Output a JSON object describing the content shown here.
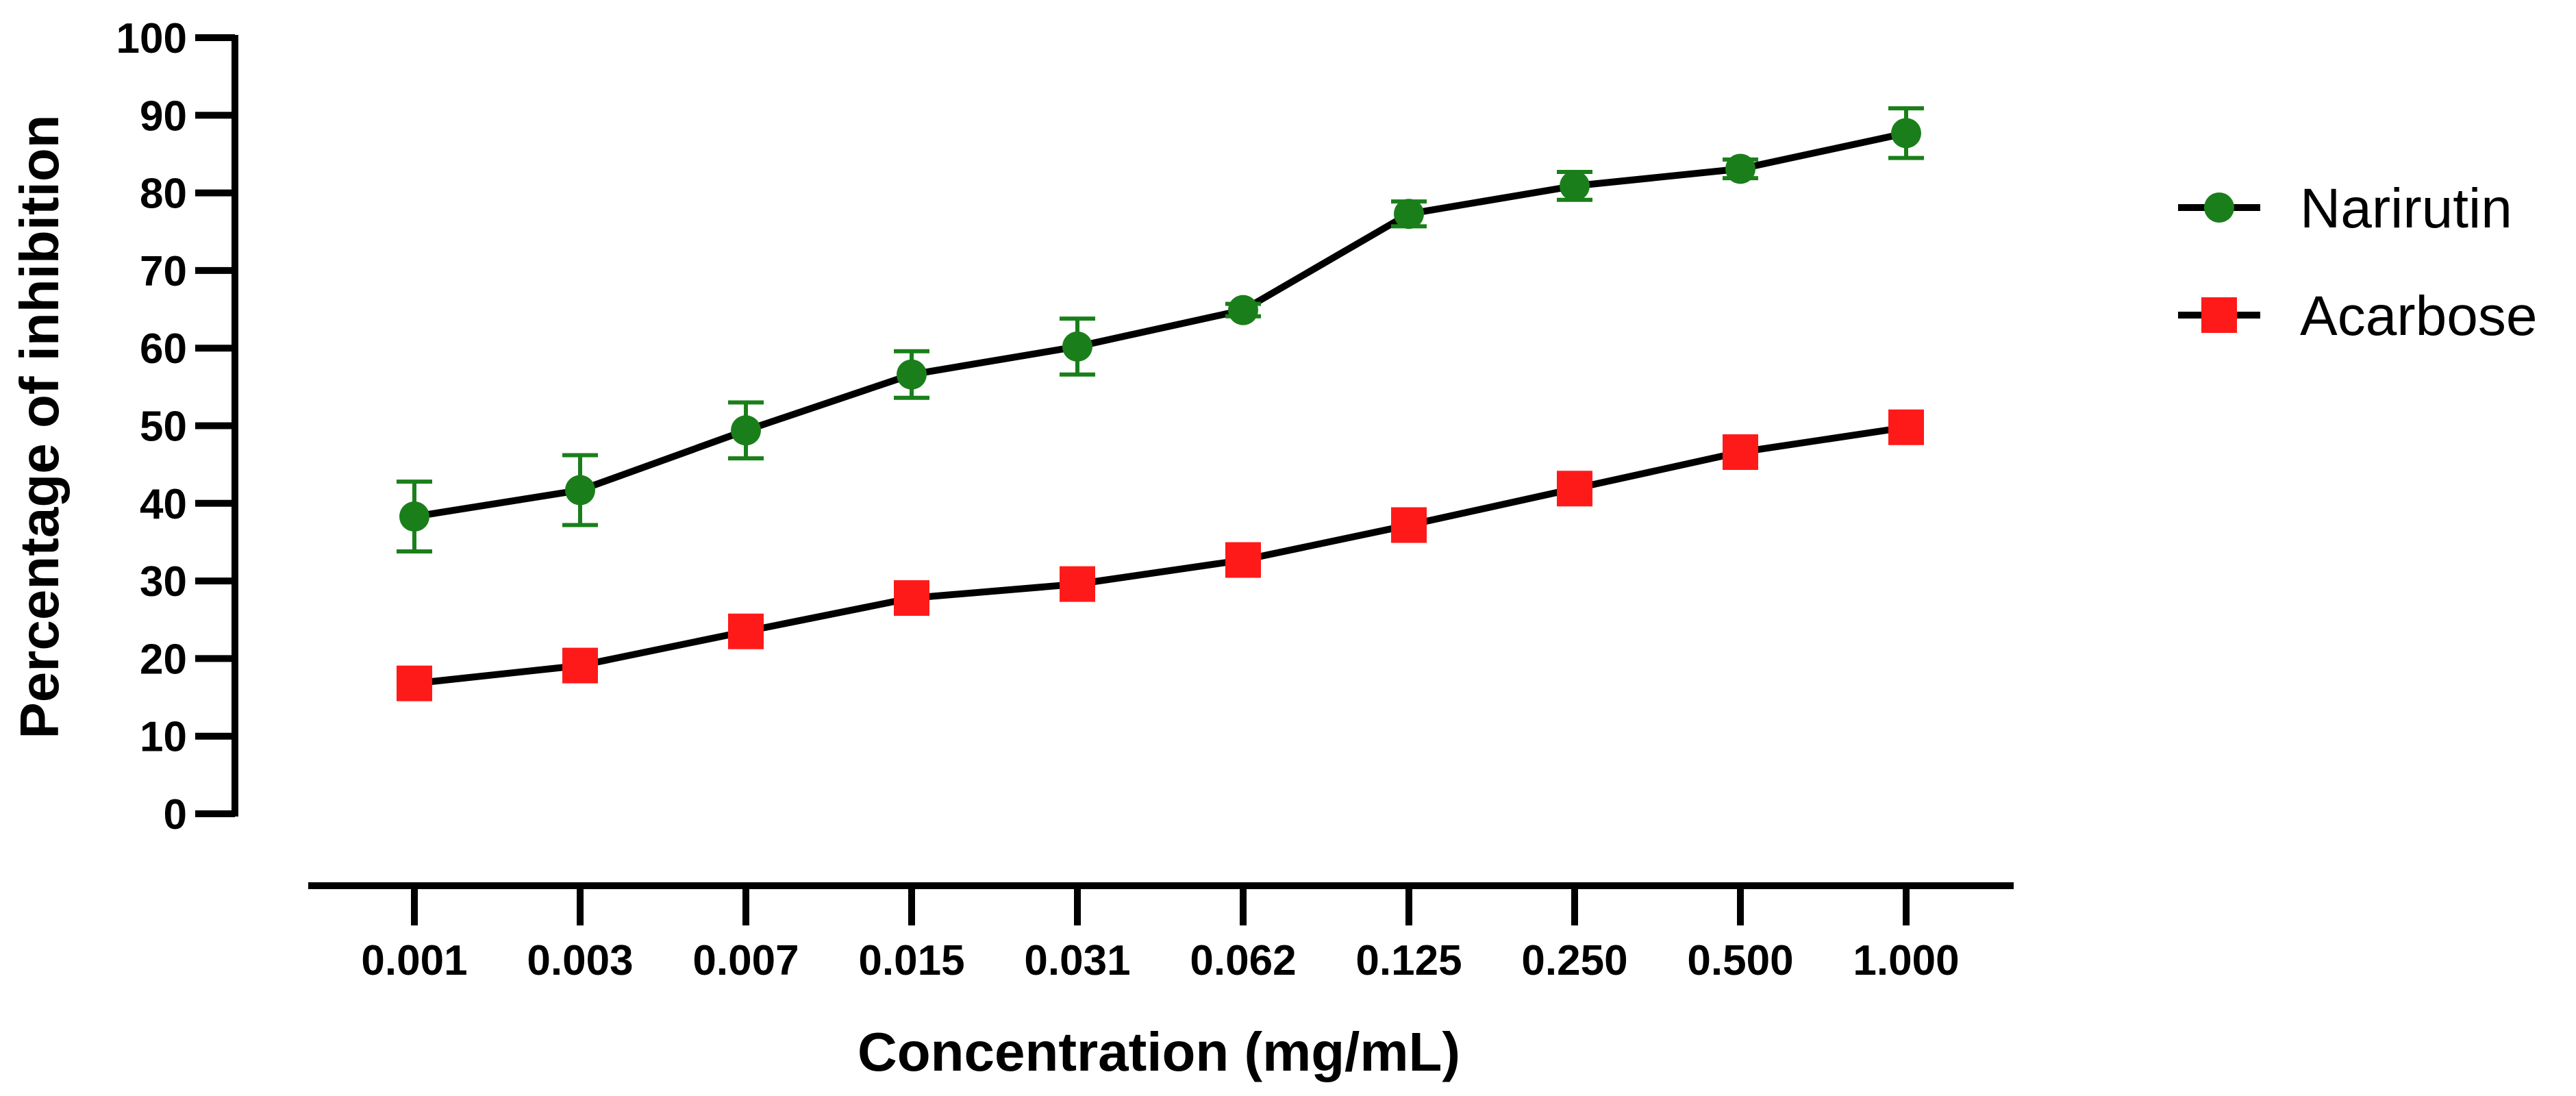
{
  "chart_data": {
    "type": "line",
    "title": "",
    "xlabel": "Concentration (mg/mL)",
    "ylabel": "Percentage of inhibition",
    "categories": [
      "0.001",
      "0.003",
      "0.007",
      "0.015",
      "0.031",
      "0.062",
      "0.125",
      "0.250",
      "0.500",
      "1.000"
    ],
    "yticks": [
      0,
      10,
      20,
      30,
      40,
      50,
      60,
      70,
      80,
      90,
      100
    ],
    "ylim": [
      0,
      100
    ],
    "grid": false,
    "legend_position": "right",
    "series": [
      {
        "name": "Narirutin",
        "marker": "circle",
        "color": "#1a7f1a",
        "values": [
          38.3,
          41.7,
          49.4,
          56.6,
          60.2,
          64.9,
          77.3,
          80.9,
          83.1,
          87.7
        ],
        "errors": [
          4.5,
          4.5,
          3.6,
          3.0,
          3.6,
          0.8,
          1.6,
          1.8,
          1.2,
          3.2
        ]
      },
      {
        "name": "Acarbose",
        "marker": "square",
        "color": "#ff1a1a",
        "values": [
          16.8,
          19.1,
          23.5,
          27.8,
          29.6,
          32.7,
          37.2,
          41.9,
          46.6,
          49.8
        ],
        "errors": [
          0.8,
          0.8,
          0.8,
          0.8,
          0.8,
          0.8,
          0.8,
          0.8,
          0.8,
          0.8
        ]
      }
    ]
  }
}
